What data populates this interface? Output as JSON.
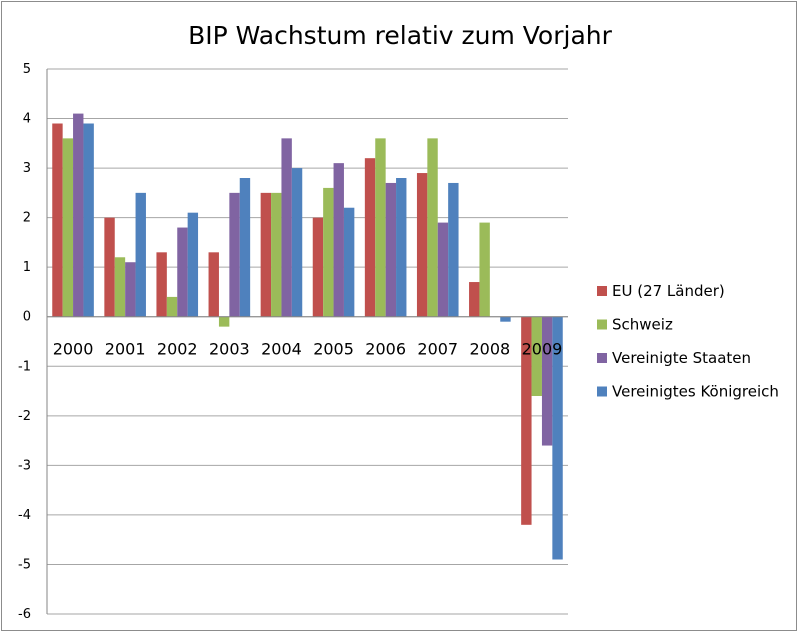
{
  "chart_data": {
    "type": "bar",
    "title": "BIP Wachstum relativ zum Vorjahr",
    "xlabel": "",
    "ylabel": "",
    "ylim": [
      -6,
      5
    ],
    "yticks": [
      5,
      4,
      3,
      2,
      1,
      0,
      -1,
      -2,
      -3,
      -4,
      -5,
      -6
    ],
    "grid": true,
    "legend_position": "right",
    "categories": [
      "2000",
      "2001",
      "2002",
      "2003",
      "2004",
      "2005",
      "2006",
      "2007",
      "2008",
      "2009"
    ],
    "series": [
      {
        "name": "EU (27 Länder)",
        "color": "#c0504d",
        "values": [
          3.9,
          2.0,
          1.3,
          1.3,
          2.5,
          2.0,
          3.2,
          2.9,
          0.7,
          -4.2
        ]
      },
      {
        "name": "Schweiz",
        "color": "#9bbb59",
        "values": [
          3.6,
          1.2,
          0.4,
          -0.2,
          2.5,
          2.6,
          3.6,
          3.6,
          1.9,
          -1.6
        ]
      },
      {
        "name": "Vereinigte Staaten",
        "color": "#8064a2",
        "values": [
          4.1,
          1.1,
          1.8,
          2.5,
          3.6,
          3.1,
          2.7,
          1.9,
          0.0,
          -2.6
        ]
      },
      {
        "name": "Vereinigtes Königreich",
        "color": "#4f81bd",
        "values": [
          3.9,
          2.5,
          2.1,
          2.8,
          3.0,
          2.2,
          2.8,
          2.7,
          -0.1,
          -4.9
        ]
      }
    ]
  }
}
